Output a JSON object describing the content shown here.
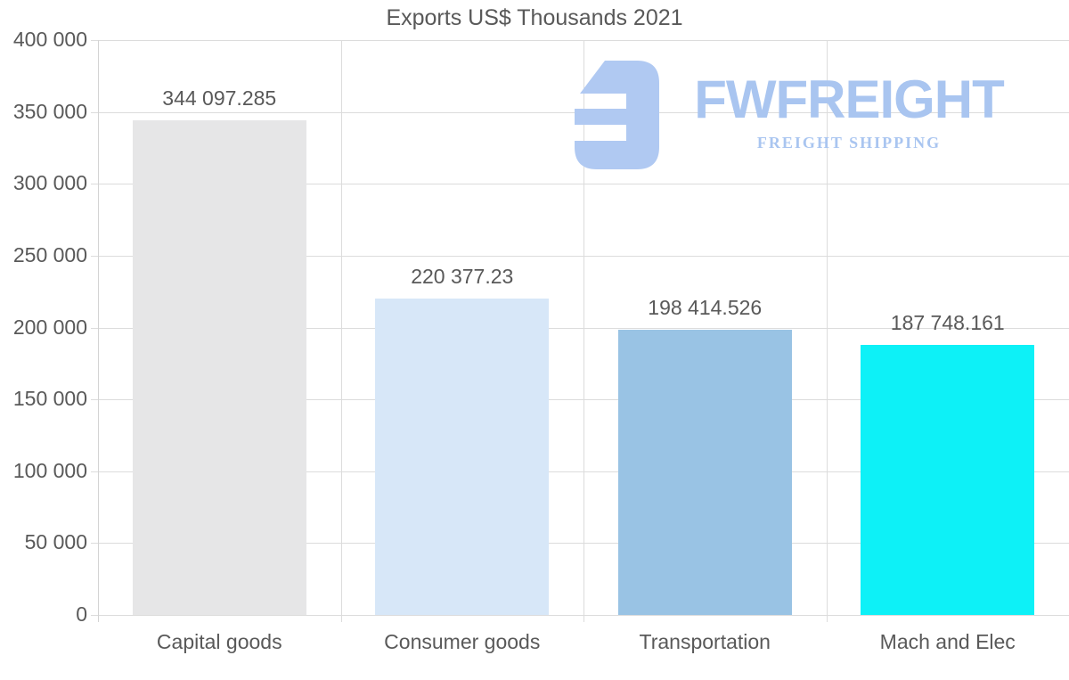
{
  "title": "Exports US$ Thousands 2021",
  "colors": {
    "text": "#595959",
    "grid": "#dcdcdc",
    "axis": "#d4d4d4",
    "background": "#ffffff",
    "watermark": "#a9c5f0"
  },
  "watermark": {
    "brand": "FWFREIGHT",
    "tagline": "FREIGHT SHIPPING",
    "icon": "freight-logo-mark",
    "color": "#a9c5f0",
    "icon_color": "#b0c9f2"
  },
  "chart_data": {
    "type": "bar",
    "title": "Exports US$ Thousands 2021",
    "categories": [
      "Capital goods",
      "Consumer goods",
      "Transportation",
      "Mach and Elec"
    ],
    "values": [
      344097.285,
      220377.23,
      198414.526,
      187748.161
    ],
    "value_labels": [
      "344 097.285",
      "220 377.23",
      "198 414.526",
      "187 748.161"
    ],
    "bar_colors": [
      "#e6e6e7",
      "#d7e7f8",
      "#99c3e4",
      "#0df1f7"
    ],
    "xlabel": "",
    "ylabel": "",
    "ylim": [
      0,
      400000
    ],
    "ytick_step": 50000,
    "ytick_labels": [
      "0",
      "50 000",
      "100 000",
      "150 000",
      "200 000",
      "250 000",
      "300 000",
      "350 000",
      "400 000"
    ],
    "grid": true,
    "legend_position": "none"
  }
}
